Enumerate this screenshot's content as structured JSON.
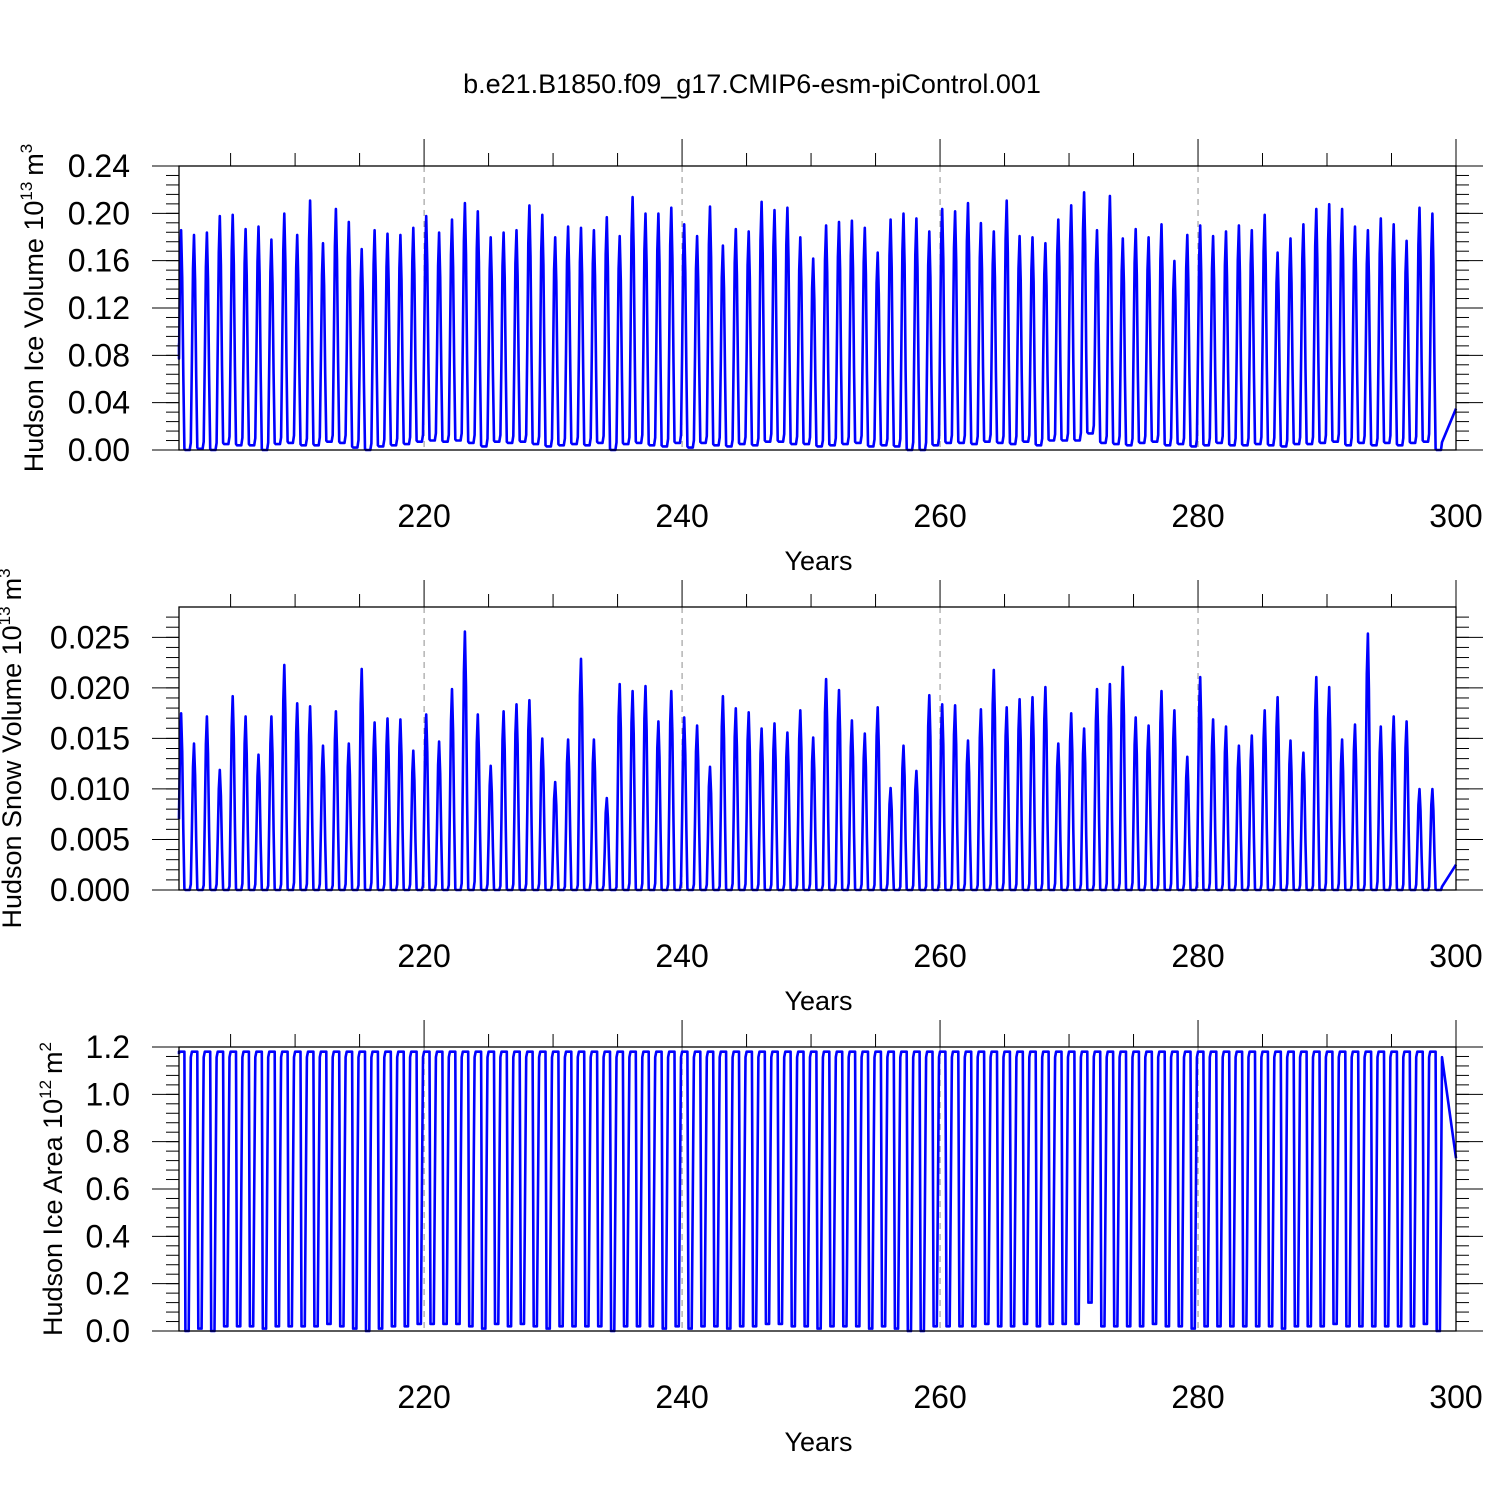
{
  "title": "b.e21.B1850.f09_g17.CMIP6-esm-piControl.001",
  "colors": {
    "series": "#0000ff",
    "axis": "#000000",
    "background": "#ffffff"
  },
  "chart_data": [
    {
      "type": "line",
      "ylabel": "Hudson Ice Volume 10",
      "ylabel_exp": "13",
      "ylabel_unit": "m",
      "ylabel_unit_exp": "3",
      "xlabel": "Years",
      "xlim": [
        201,
        300
      ],
      "ylim": [
        0,
        0.24
      ],
      "xticks": [
        220,
        240,
        260,
        280,
        300
      ],
      "xtick_labels": [
        "220",
        "240",
        "260",
        "280",
        "300"
      ],
      "yticks": [
        0.0,
        0.04,
        0.08,
        0.12,
        0.16,
        0.2,
        0.24
      ],
      "ytick_labels": [
        "0.00",
        "0.04",
        "0.08",
        "0.12",
        "0.16",
        "0.20",
        "0.24"
      ],
      "grid": "dashed vertical at major x ticks",
      "sampling": "monthly, one annual maximum per year",
      "start_value": 0.09,
      "end_value": 0.035,
      "annual_peaks": [
        0.186,
        0.182,
        0.184,
        0.198,
        0.199,
        0.187,
        0.189,
        0.178,
        0.2,
        0.182,
        0.211,
        0.175,
        0.204,
        0.193,
        0.17,
        0.186,
        0.183,
        0.182,
        0.188,
        0.198,
        0.184,
        0.195,
        0.209,
        0.202,
        0.18,
        0.184,
        0.186,
        0.207,
        0.199,
        0.18,
        0.189,
        0.188,
        0.186,
        0.197,
        0.181,
        0.214,
        0.2,
        0.2,
        0.205,
        0.191,
        0.181,
        0.206,
        0.173,
        0.187,
        0.185,
        0.21,
        0.203,
        0.205,
        0.18,
        0.162,
        0.19,
        0.193,
        0.194,
        0.188,
        0.167,
        0.195,
        0.2,
        0.196,
        0.185,
        0.204,
        0.202,
        0.209,
        0.192,
        0.185,
        0.211,
        0.181,
        0.18,
        0.175,
        0.195,
        0.207,
        0.218,
        0.186,
        0.215,
        0.179,
        0.187,
        0.18,
        0.191,
        0.16,
        0.182,
        0.19,
        0.181,
        0.185,
        0.19,
        0.186,
        0.199,
        0.167,
        0.179,
        0.191,
        0.204,
        0.208,
        0.204,
        0.189,
        0.186,
        0.196,
        0.191,
        0.177,
        0.205,
        0.2
      ],
      "annual_minima": [
        0.0,
        0.001,
        0.0,
        0.005,
        0.004,
        0.004,
        0.0,
        0.005,
        0.006,
        0.004,
        0.004,
        0.007,
        0.006,
        0.002,
        0.0,
        0.003,
        0.004,
        0.005,
        0.007,
        0.008,
        0.007,
        0.008,
        0.006,
        0.003,
        0.007,
        0.006,
        0.007,
        0.005,
        0.003,
        0.004,
        0.005,
        0.004,
        0.006,
        0.0,
        0.005,
        0.006,
        0.004,
        0.003,
        0.006,
        0.002,
        0.006,
        0.004,
        0.003,
        0.005,
        0.004,
        0.007,
        0.007,
        0.005,
        0.005,
        0.003,
        0.004,
        0.005,
        0.006,
        0.003,
        0.004,
        0.003,
        0.0,
        0.0,
        0.004,
        0.006,
        0.006,
        0.005,
        0.007,
        0.006,
        0.005,
        0.007,
        0.004,
        0.008,
        0.008,
        0.008,
        0.014,
        0.006,
        0.005,
        0.004,
        0.006,
        0.007,
        0.004,
        0.005,
        0.003,
        0.004,
        0.006,
        0.004,
        0.004,
        0.005,
        0.004,
        0.003,
        0.005,
        0.005,
        0.006,
        0.007,
        0.004,
        0.006,
        0.004,
        0.006,
        0.004,
        0.006,
        0.007,
        0.0
      ]
    },
    {
      "type": "line",
      "ylabel": "Hudson Snow Volume 10",
      "ylabel_exp": "13",
      "ylabel_unit": "m",
      "ylabel_unit_exp": "3",
      "xlabel": "Years",
      "xlim": [
        201,
        300
      ],
      "ylim": [
        0,
        0.028
      ],
      "xticks": [
        220,
        240,
        260,
        280,
        300
      ],
      "xtick_labels": [
        "220",
        "240",
        "260",
        "280",
        "300"
      ],
      "yticks": [
        0.0,
        0.005,
        0.01,
        0.015,
        0.02,
        0.025
      ],
      "ytick_labels": [
        "0.000",
        "0.005",
        "0.010",
        "0.015",
        "0.020",
        "0.025"
      ],
      "grid": "dashed vertical at major x ticks",
      "sampling": "monthly, one annual maximum per year",
      "start_value": 0.007,
      "end_value": 0.0025,
      "annual_peaks": [
        0.0175,
        0.0145,
        0.0172,
        0.0119,
        0.0192,
        0.0172,
        0.0134,
        0.0172,
        0.0223,
        0.0185,
        0.0182,
        0.0143,
        0.0177,
        0.0145,
        0.0219,
        0.0166,
        0.017,
        0.0169,
        0.0138,
        0.0174,
        0.0147,
        0.0199,
        0.0256,
        0.0174,
        0.0123,
        0.0177,
        0.0184,
        0.0188,
        0.015,
        0.0107,
        0.0149,
        0.0229,
        0.0149,
        0.0091,
        0.0204,
        0.0197,
        0.0202,
        0.0167,
        0.0197,
        0.0171,
        0.0163,
        0.0122,
        0.0192,
        0.018,
        0.0176,
        0.016,
        0.0165,
        0.0156,
        0.0178,
        0.0151,
        0.0209,
        0.0198,
        0.0168,
        0.0155,
        0.0181,
        0.0101,
        0.0143,
        0.0118,
        0.0193,
        0.0184,
        0.0183,
        0.0148,
        0.0179,
        0.0218,
        0.0181,
        0.0189,
        0.0191,
        0.0201,
        0.0145,
        0.0175,
        0.016,
        0.0199,
        0.0204,
        0.0221,
        0.0171,
        0.0163,
        0.0197,
        0.0178,
        0.0132,
        0.0211,
        0.0169,
        0.0162,
        0.0143,
        0.0153,
        0.0178,
        0.0191,
        0.0148,
        0.0136,
        0.0211,
        0.0201,
        0.0149,
        0.0164,
        0.0254,
        0.0162,
        0.0172,
        0.0167,
        0.01,
        0.01
      ],
      "annual_minima": [
        0,
        0,
        0,
        0,
        0,
        0,
        0,
        0,
        0,
        0,
        0,
        0,
        0,
        0,
        0,
        0,
        0,
        0,
        0,
        0,
        0,
        0,
        0,
        0,
        0,
        0,
        0,
        0,
        0,
        0,
        0,
        0,
        0,
        0,
        0,
        0,
        0,
        0,
        0,
        0,
        0,
        0,
        0,
        0,
        0,
        0,
        0,
        0,
        0,
        0,
        0,
        0,
        0,
        0,
        0,
        0,
        0,
        0,
        0,
        0,
        0,
        0,
        0,
        0,
        0,
        0,
        0,
        0,
        0,
        0,
        0,
        0,
        0,
        0,
        0,
        0,
        0,
        0,
        0,
        0,
        0,
        0,
        0,
        0,
        0,
        0,
        0,
        0,
        0,
        0,
        0,
        0,
        0,
        0,
        0,
        0,
        0,
        0
      ]
    },
    {
      "type": "line",
      "ylabel": "Hudson Ice Area 10",
      "ylabel_exp": "12",
      "ylabel_unit": "m",
      "ylabel_unit_exp": "2",
      "xlabel": "Years",
      "xlim": [
        201,
        300
      ],
      "ylim": [
        0,
        1.2
      ],
      "xticks": [
        220,
        240,
        260,
        280,
        300
      ],
      "xtick_labels": [
        "220",
        "240",
        "260",
        "280",
        "300"
      ],
      "yticks": [
        0.0,
        0.2,
        0.4,
        0.6,
        0.8,
        1.0,
        1.2
      ],
      "ytick_labels": [
        "0.0",
        "0.2",
        "0.4",
        "0.6",
        "0.8",
        "1.0",
        "1.2"
      ],
      "grid": "dashed vertical at major x ticks",
      "sampling": "monthly, one annual maximum per year",
      "start_value": 1.17,
      "end_value": 0.73,
      "annual_peaks": [
        1.18,
        1.18,
        1.18,
        1.18,
        1.18,
        1.18,
        1.18,
        1.18,
        1.18,
        1.18,
        1.18,
        1.18,
        1.18,
        1.18,
        1.18,
        1.18,
        1.18,
        1.18,
        1.18,
        1.18,
        1.18,
        1.18,
        1.18,
        1.18,
        1.18,
        1.18,
        1.18,
        1.18,
        1.18,
        1.18,
        1.18,
        1.18,
        1.18,
        1.18,
        1.18,
        1.18,
        1.18,
        1.18,
        1.18,
        1.18,
        1.18,
        1.18,
        1.18,
        1.18,
        1.18,
        1.18,
        1.18,
        1.18,
        1.18,
        1.18,
        1.18,
        1.18,
        1.18,
        1.18,
        1.18,
        1.18,
        1.18,
        1.18,
        1.18,
        1.18,
        1.18,
        1.18,
        1.18,
        1.18,
        1.18,
        1.18,
        1.18,
        1.18,
        1.18,
        1.18,
        1.18,
        1.18,
        1.18,
        1.18,
        1.18,
        1.18,
        1.18,
        1.18,
        1.18,
        1.18,
        1.18,
        1.18,
        1.18,
        1.18,
        1.18,
        1.18,
        1.18,
        1.18,
        1.18,
        1.18,
        1.18,
        1.18,
        1.18,
        1.18,
        1.18,
        1.18,
        1.18,
        1.18
      ],
      "annual_minima": [
        0.0,
        0.01,
        0.0,
        0.02,
        0.02,
        0.02,
        0.01,
        0.02,
        0.02,
        0.02,
        0.02,
        0.03,
        0.02,
        0.01,
        0.0,
        0.01,
        0.02,
        0.02,
        0.03,
        0.03,
        0.03,
        0.03,
        0.02,
        0.01,
        0.03,
        0.02,
        0.03,
        0.02,
        0.01,
        0.02,
        0.02,
        0.02,
        0.02,
        0.0,
        0.02,
        0.02,
        0.02,
        0.01,
        0.02,
        0.01,
        0.02,
        0.02,
        0.01,
        0.02,
        0.02,
        0.03,
        0.03,
        0.02,
        0.02,
        0.01,
        0.02,
        0.02,
        0.02,
        0.01,
        0.02,
        0.01,
        0.0,
        0.0,
        0.02,
        0.02,
        0.02,
        0.02,
        0.03,
        0.02,
        0.02,
        0.03,
        0.02,
        0.03,
        0.03,
        0.03,
        0.12,
        0.02,
        0.02,
        0.02,
        0.02,
        0.03,
        0.02,
        0.02,
        0.01,
        0.02,
        0.02,
        0.02,
        0.02,
        0.02,
        0.02,
        0.01,
        0.02,
        0.02,
        0.02,
        0.03,
        0.02,
        0.02,
        0.02,
        0.02,
        0.02,
        0.02,
        0.03,
        0.0
      ]
    }
  ]
}
